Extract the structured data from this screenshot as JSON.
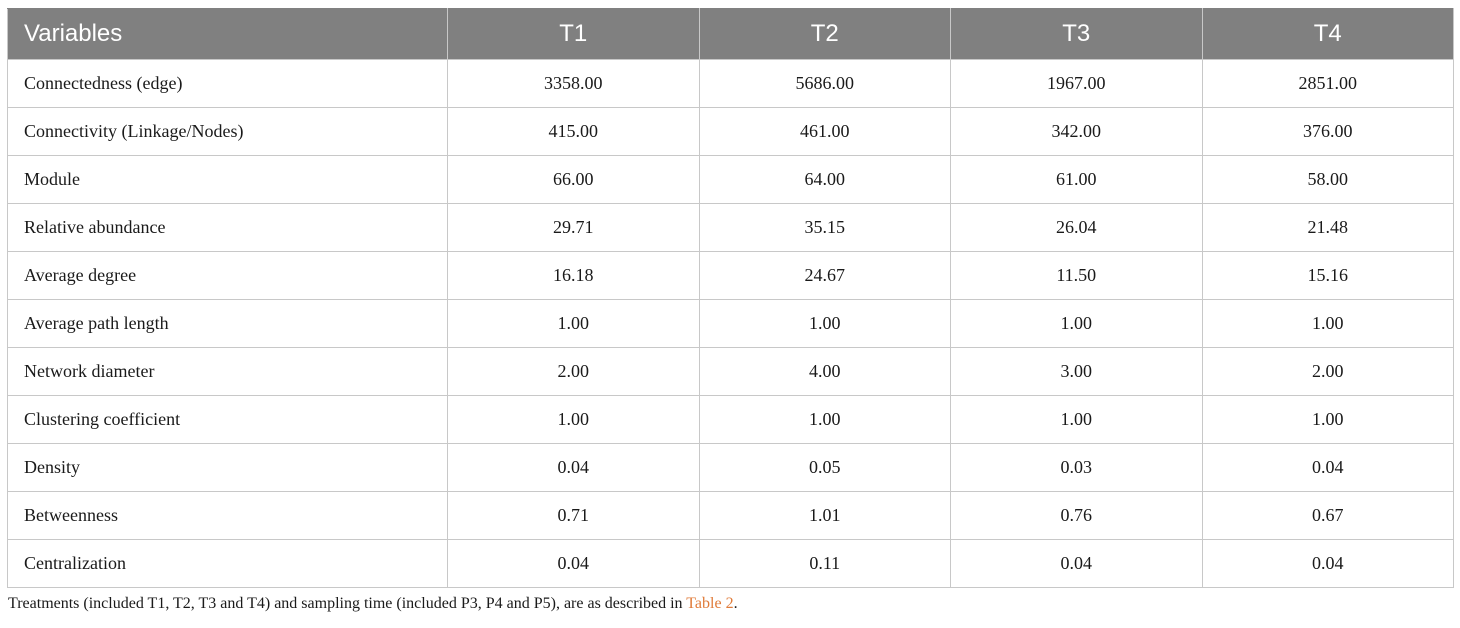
{
  "table": {
    "headers": [
      "Variables",
      "T1",
      "T2",
      "T3",
      "T4"
    ],
    "rows": [
      {
        "label": "Connectedness (edge)",
        "values": [
          "3358.00",
          "5686.00",
          "1967.00",
          "2851.00"
        ]
      },
      {
        "label": "Connectivity (Linkage/Nodes)",
        "values": [
          "415.00",
          "461.00",
          "342.00",
          "376.00"
        ]
      },
      {
        "label": "Module",
        "values": [
          "66.00",
          "64.00",
          "61.00",
          "58.00"
        ]
      },
      {
        "label": "Relative abundance",
        "values": [
          "29.71",
          "35.15",
          "26.04",
          "21.48"
        ]
      },
      {
        "label": "Average degree",
        "values": [
          "16.18",
          "24.67",
          "11.50",
          "15.16"
        ]
      },
      {
        "label": "Average path length",
        "values": [
          "1.00",
          "1.00",
          "1.00",
          "1.00"
        ]
      },
      {
        "label": "Network diameter",
        "values": [
          "2.00",
          "4.00",
          "3.00",
          "2.00"
        ]
      },
      {
        "label": "Clustering coefficient",
        "values": [
          "1.00",
          "1.00",
          "1.00",
          "1.00"
        ]
      },
      {
        "label": "Density",
        "values": [
          "0.04",
          "0.05",
          "0.03",
          "0.04"
        ]
      },
      {
        "label": "Betweenness",
        "values": [
          "0.71",
          "1.01",
          "0.76",
          "0.67"
        ]
      },
      {
        "label": "Centralization",
        "values": [
          "0.04",
          "0.11",
          "0.04",
          "0.04"
        ]
      }
    ]
  },
  "footnote": {
    "text": "Treatments (included T1, T2, T3 and T4) and sampling time (included P3, P4 and P5), are as described in ",
    "link_text": "Table 2",
    "end": "."
  },
  "colors": {
    "header_bg": "#808080",
    "header_text": "#ffffff",
    "border": "#c8c8c8",
    "link": "#e07b39"
  }
}
